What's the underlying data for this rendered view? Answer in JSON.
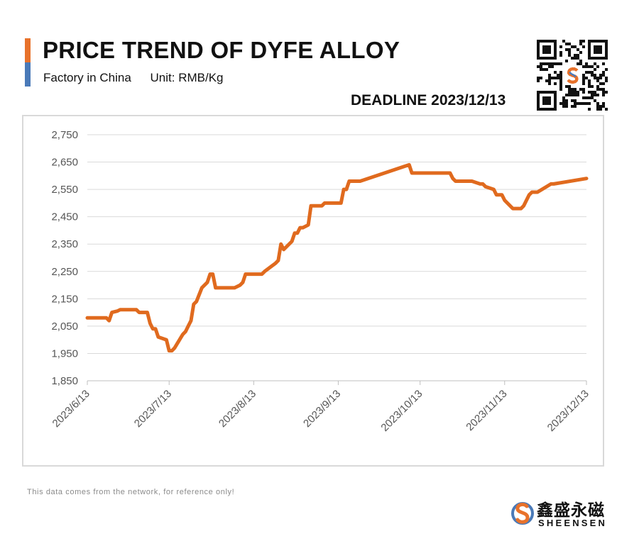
{
  "header": {
    "title": "PRICE TREND OF DYFE ALLOY",
    "subtitle_factory": "Factory in China",
    "subtitle_unit": "Unit: RMB/Kg",
    "deadline": "DEADLINE 2023/12/13"
  },
  "footer": {
    "note": "This data comes from the network, for reference only!",
    "brand_cn": "鑫盛永磁",
    "brand_en": "SHEENSEN"
  },
  "colors": {
    "line": "#e06a1e",
    "accent_orange": "#e8722b",
    "accent_blue": "#4a7ab8",
    "grid": "#d9d9d9",
    "tick_text": "#555555"
  },
  "chart_data": {
    "type": "line",
    "title": "PRICE TREND OF DYFE ALLOY",
    "xlabel": "",
    "ylabel": "",
    "ylim": [
      1850,
      2750
    ],
    "yticks": [
      1850,
      1950,
      2050,
      2150,
      2250,
      2350,
      2450,
      2550,
      2650,
      2750
    ],
    "ytick_labels": [
      "1,850",
      "1,950",
      "2,050",
      "2,150",
      "2,250",
      "2,350",
      "2,450",
      "2,550",
      "2,650",
      "2,750"
    ],
    "xlim": [
      "2023-06-13",
      "2023-12-13"
    ],
    "xticks": [
      "2023-06-13",
      "2023-07-13",
      "2023-08-13",
      "2023-09-13",
      "2023-10-13",
      "2023-11-13",
      "2023-12-13"
    ],
    "xtick_labels": [
      "2023/6/13",
      "2023/7/13",
      "2023/8/13",
      "2023/9/13",
      "2023/10/13",
      "2023/11/13",
      "2023/12/13"
    ],
    "grid": true,
    "series": [
      {
        "x": [
          "2023-06-13",
          "2023-06-20",
          "2023-06-21",
          "2023-06-22",
          "2023-06-24",
          "2023-06-25",
          "2023-06-27",
          "2023-07-01",
          "2023-07-02",
          "2023-07-05",
          "2023-07-06",
          "2023-07-07",
          "2023-07-08",
          "2023-07-09",
          "2023-07-12",
          "2023-07-13",
          "2023-07-14",
          "2023-07-15",
          "2023-07-18",
          "2023-07-19",
          "2023-07-20",
          "2023-07-21",
          "2023-07-22",
          "2023-07-23",
          "2023-07-25",
          "2023-07-27",
          "2023-07-28",
          "2023-07-29",
          "2023-07-30",
          "2023-08-06",
          "2023-08-08",
          "2023-08-09",
          "2023-08-10",
          "2023-08-15",
          "2023-08-16",
          "2023-08-17",
          "2023-08-21",
          "2023-08-22",
          "2023-08-23",
          "2023-08-24",
          "2023-08-27",
          "2023-08-28",
          "2023-08-29",
          "2023-08-30",
          "2023-08-31",
          "2023-09-02",
          "2023-09-03",
          "2023-09-07",
          "2023-09-08",
          "2023-09-13",
          "2023-09-14",
          "2023-09-15",
          "2023-09-16",
          "2023-09-17",
          "2023-09-21",
          "2023-10-09",
          "2023-10-10",
          "2023-10-23",
          "2023-10-24",
          "2023-10-25",
          "2023-10-26",
          "2023-10-31",
          "2023-11-01",
          "2023-11-04",
          "2023-11-05",
          "2023-11-06",
          "2023-11-09",
          "2023-11-10",
          "2023-11-11",
          "2023-11-12",
          "2023-11-13",
          "2023-11-16",
          "2023-11-17",
          "2023-11-18",
          "2023-11-19",
          "2023-11-20",
          "2023-11-22",
          "2023-11-23",
          "2023-11-24",
          "2023-11-25",
          "2023-11-30",
          "2023-12-01",
          "2023-12-13"
        ],
        "values": [
          2080,
          2080,
          2070,
          2100,
          2105,
          2110,
          2110,
          2110,
          2100,
          2100,
          2060,
          2040,
          2040,
          2010,
          2000,
          1960,
          1960,
          1970,
          2020,
          2030,
          2050,
          2070,
          2130,
          2140,
          2190,
          2210,
          2240,
          2240,
          2190,
          2190,
          2200,
          2210,
          2240,
          2240,
          2240,
          2250,
          2280,
          2290,
          2350,
          2330,
          2360,
          2390,
          2390,
          2410,
          2410,
          2420,
          2490,
          2490,
          2500,
          2500,
          2500,
          2550,
          2550,
          2580,
          2580,
          2640,
          2610,
          2610,
          2610,
          2590,
          2580,
          2580,
          2580,
          2570,
          2570,
          2560,
          2550,
          2530,
          2530,
          2530,
          2510,
          2480,
          2480,
          2480,
          2480,
          2490,
          2530,
          2540,
          2540,
          2540,
          2570,
          2570,
          2590
        ]
      }
    ]
  }
}
